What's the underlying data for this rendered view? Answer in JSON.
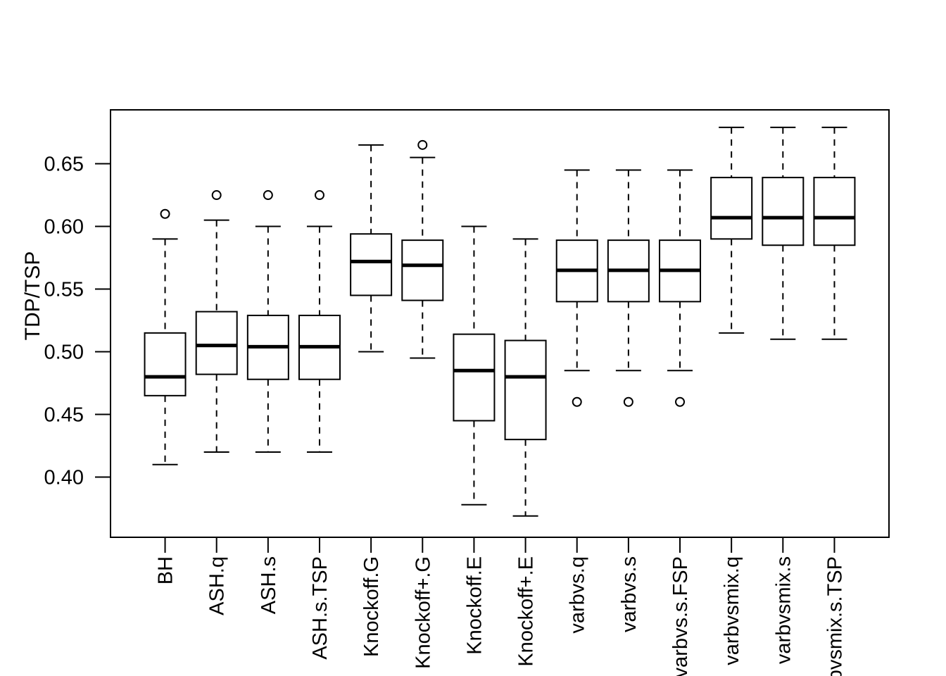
{
  "chart_data": {
    "type": "boxplot",
    "title": "",
    "xlabel": "",
    "ylabel": "TDP/TSP",
    "grid": false,
    "legend": "none",
    "ylim": [
      0.352,
      0.693
    ],
    "y_ticks": [
      0.4,
      0.45,
      0.5,
      0.55,
      0.6,
      0.65
    ],
    "y_tick_labels": [
      "0.40",
      "0.45",
      "0.50",
      "0.55",
      "0.60",
      "0.65"
    ],
    "categories": [
      "BH",
      "ASH.q",
      "ASH.s",
      "ASH.s.TSP",
      "Knockoff.G",
      "Knockoff+.G",
      "Knockoff.E",
      "Knockoff+.E",
      "varbvs.q",
      "varbvs.s",
      "varbvs.s.FSP",
      "varbvsmix.q",
      "varbvsmix.s",
      "varbvsmix.s.TSP"
    ],
    "boxes": [
      {
        "label": "BH",
        "whisker_low": 0.41,
        "q1": 0.465,
        "median": 0.48,
        "q3": 0.515,
        "whisker_high": 0.59,
        "outliers": [
          0.61
        ]
      },
      {
        "label": "ASH.q",
        "whisker_low": 0.42,
        "q1": 0.482,
        "median": 0.505,
        "q3": 0.532,
        "whisker_high": 0.605,
        "outliers": [
          0.625
        ]
      },
      {
        "label": "ASH.s",
        "whisker_low": 0.42,
        "q1": 0.478,
        "median": 0.504,
        "q3": 0.529,
        "whisker_high": 0.6,
        "outliers": [
          0.625
        ]
      },
      {
        "label": "ASH.s.TSP",
        "whisker_low": 0.42,
        "q1": 0.478,
        "median": 0.504,
        "q3": 0.529,
        "whisker_high": 0.6,
        "outliers": [
          0.625
        ]
      },
      {
        "label": "Knockoff.G",
        "whisker_low": 0.5,
        "q1": 0.545,
        "median": 0.572,
        "q3": 0.594,
        "whisker_high": 0.665,
        "outliers": []
      },
      {
        "label": "Knockoff+.G",
        "whisker_low": 0.495,
        "q1": 0.541,
        "median": 0.569,
        "q3": 0.589,
        "whisker_high": 0.655,
        "outliers": [
          0.665
        ]
      },
      {
        "label": "Knockoff.E",
        "whisker_low": 0.378,
        "q1": 0.445,
        "median": 0.485,
        "q3": 0.514,
        "whisker_high": 0.6,
        "outliers": []
      },
      {
        "label": "Knockoff+.E",
        "whisker_low": 0.369,
        "q1": 0.43,
        "median": 0.48,
        "q3": 0.509,
        "whisker_high": 0.59,
        "outliers": []
      },
      {
        "label": "varbvs.q",
        "whisker_low": 0.485,
        "q1": 0.54,
        "median": 0.565,
        "q3": 0.589,
        "whisker_high": 0.645,
        "outliers": [
          0.46
        ]
      },
      {
        "label": "varbvs.s",
        "whisker_low": 0.485,
        "q1": 0.54,
        "median": 0.565,
        "q3": 0.589,
        "whisker_high": 0.645,
        "outliers": [
          0.46
        ]
      },
      {
        "label": "varbvs.s.FSP",
        "whisker_low": 0.485,
        "q1": 0.54,
        "median": 0.565,
        "q3": 0.589,
        "whisker_high": 0.645,
        "outliers": [
          0.46
        ]
      },
      {
        "label": "varbvsmix.q",
        "whisker_low": 0.515,
        "q1": 0.59,
        "median": 0.607,
        "q3": 0.639,
        "whisker_high": 0.679,
        "outliers": []
      },
      {
        "label": "varbvsmix.s",
        "whisker_low": 0.51,
        "q1": 0.585,
        "median": 0.607,
        "q3": 0.639,
        "whisker_high": 0.679,
        "outliers": []
      },
      {
        "label": "varbvsmix.s.TSP",
        "whisker_low": 0.51,
        "q1": 0.585,
        "median": 0.607,
        "q3": 0.639,
        "whisker_high": 0.679,
        "outliers": []
      }
    ],
    "colors": {
      "stroke": "#000000",
      "box_fill": "#ffffff",
      "background": "#ffffff"
    }
  }
}
